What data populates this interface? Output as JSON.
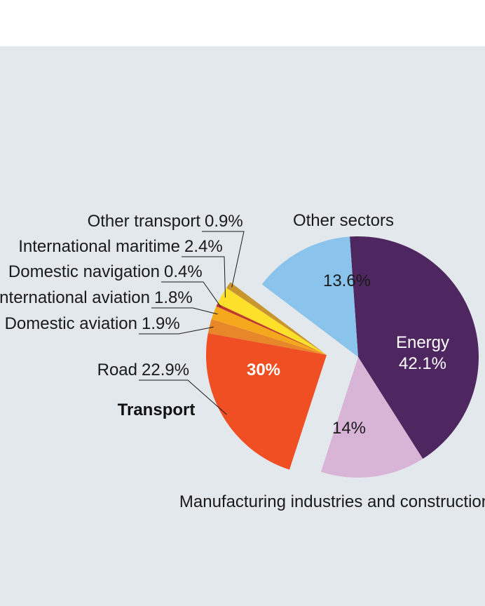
{
  "chart_data": {
    "type": "pie",
    "slices": [
      {
        "label": "Energy",
        "value": 42.1,
        "value_label": "42.1%",
        "color": "#4e2660",
        "group": "main"
      },
      {
        "label": "Manufacturing industries and construction",
        "value": 14.0,
        "value_label": "14%",
        "color": "#d8b4d6",
        "group": "main"
      },
      {
        "label": "Road",
        "value": 22.9,
        "value_label": "22.9%",
        "color": "#f04e23",
        "group": "transport"
      },
      {
        "label": "Domestic aviation",
        "value": 1.9,
        "value_label": "1.9%",
        "color": "#e8862a",
        "group": "transport"
      },
      {
        "label": "International aviation",
        "value": 1.8,
        "value_label": "1.8%",
        "color": "#f5a81c",
        "group": "transport"
      },
      {
        "label": "Domestic navigation",
        "value": 0.4,
        "value_label": "0.4%",
        "color": "#c0392b",
        "group": "transport"
      },
      {
        "label": "International maritime",
        "value": 2.4,
        "value_label": "2.4%",
        "color": "#fde02a",
        "group": "transport"
      },
      {
        "label": "Other transport",
        "value": 0.9,
        "value_label": "0.9%",
        "color": "#c9952e",
        "group": "transport"
      },
      {
        "label": "Other sectors",
        "value": 13.6,
        "value_label": "13.6%",
        "color": "#8ac4ec",
        "group": "main"
      }
    ],
    "group_label": "Transport",
    "group_total_label": "30%",
    "background": "#e3e8ec"
  }
}
